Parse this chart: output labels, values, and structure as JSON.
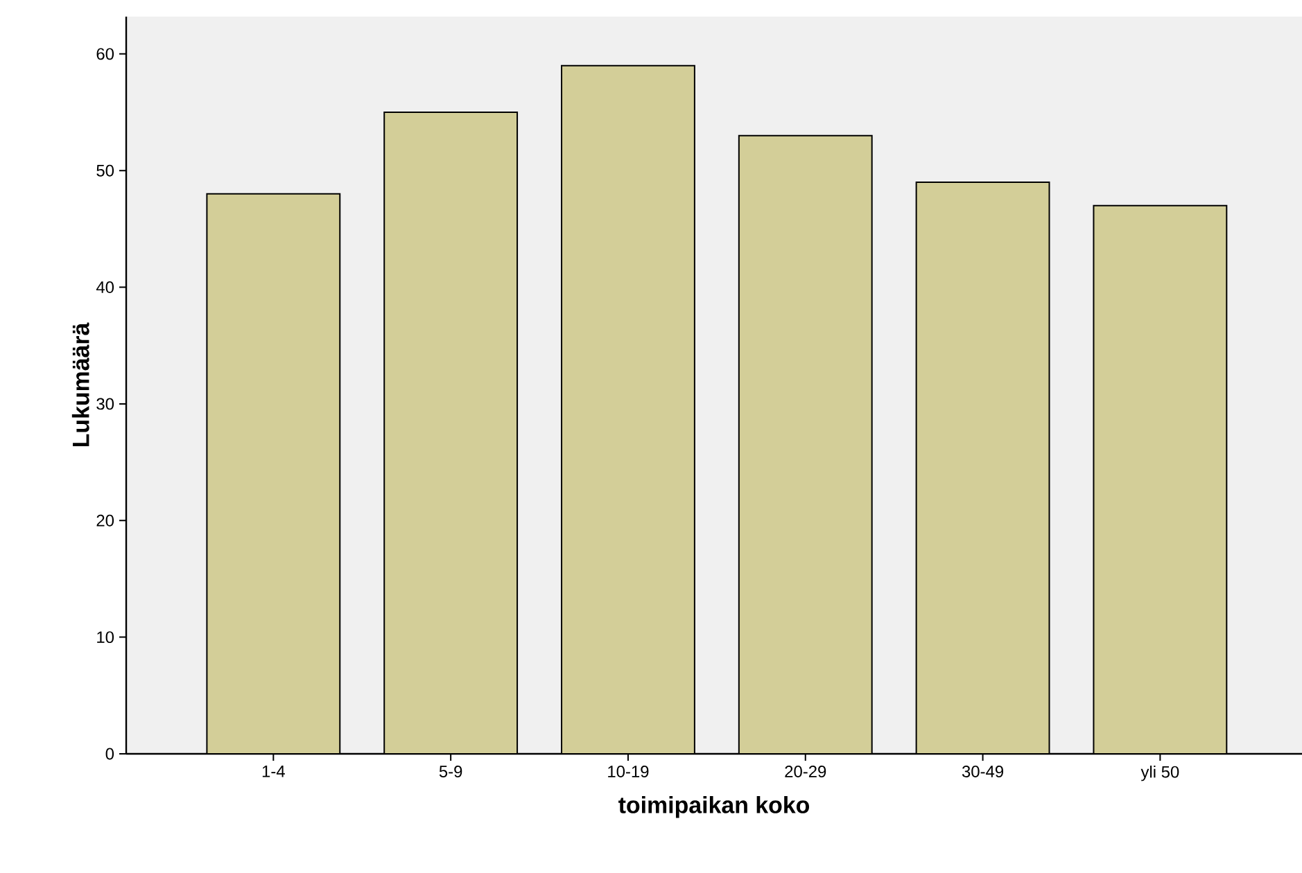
{
  "chart_data": {
    "type": "bar",
    "xlabel": "toimipaikan koko",
    "ylabel": "Lukumäärä",
    "categories": [
      "1-4",
      "5-9",
      "10-19",
      "20-29",
      "30-49",
      "yli 50"
    ],
    "values": [
      48,
      55,
      59,
      53,
      49,
      47
    ],
    "color": "#d3ce98",
    "ylim": [
      0,
      63.2
    ],
    "yticks": [
      0,
      10,
      20,
      30,
      40,
      50,
      60
    ],
    "grid": false
  }
}
